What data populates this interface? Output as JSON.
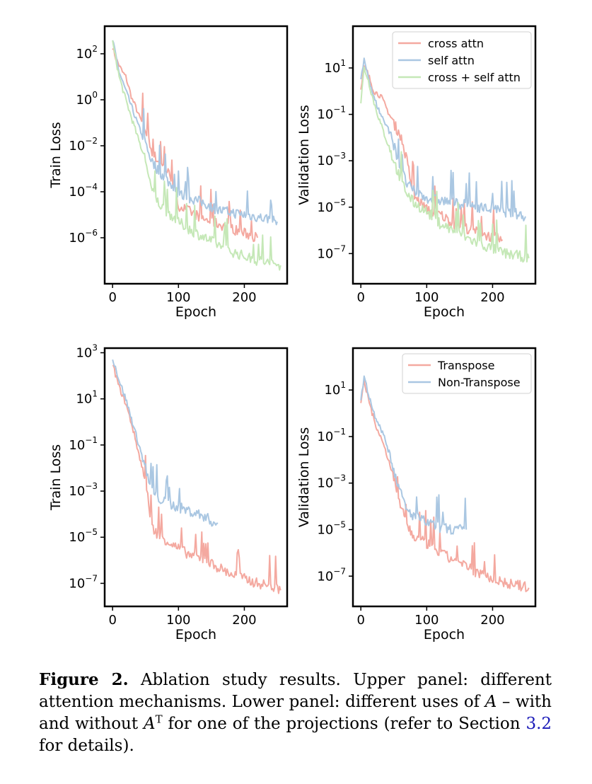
{
  "chart_data": [
    {
      "type": "line",
      "id": "top-left",
      "xlabel": "Epoch",
      "ylabel": "Train Loss",
      "yscale": "log",
      "xlim": [
        -12,
        265
      ],
      "ylim_log10": [
        -8,
        3.2
      ],
      "xticks": [
        0,
        100,
        200
      ],
      "yticks_log10": [
        2,
        0,
        -2,
        -4,
        -6
      ],
      "legend": null,
      "series": [
        {
          "color": "#f4a9a0",
          "x": [
            0,
            5,
            10,
            15,
            20,
            25,
            30,
            35,
            40,
            50,
            55,
            60,
            70,
            80,
            90,
            100,
            120,
            140,
            160,
            180,
            200,
            220
          ],
          "log10y": [
            2.3,
            1.8,
            1.5,
            1.2,
            1.0,
            0.5,
            0.0,
            -0.3,
            -0.7,
            -1.3,
            -1.8,
            -2.3,
            -2.7,
            -3.0,
            -3.4,
            -4.6,
            -4.9,
            -5.2,
            -5.4,
            -5.6,
            -5.8,
            -6.0
          ]
        },
        {
          "color": "#aac7e2",
          "x": [
            0,
            10,
            20,
            30,
            40,
            50,
            55,
            60,
            70,
            80,
            100,
            120,
            140,
            160,
            180,
            200,
            220,
            240,
            250
          ],
          "log10y": [
            2.6,
            1.2,
            0.4,
            -0.4,
            -1.2,
            -1.8,
            -2.3,
            -2.7,
            -3.1,
            -3.4,
            -4.1,
            -4.3,
            -4.5,
            -4.8,
            -4.9,
            -5.0,
            -5.1,
            -5.2,
            -5.3
          ]
        },
        {
          "color": "#c5e8b7",
          "x": [
            0,
            10,
            20,
            30,
            40,
            50,
            55,
            60,
            70,
            80,
            100,
            120,
            140,
            160,
            180,
            200,
            220,
            240,
            255
          ],
          "log10y": [
            2.5,
            1.0,
            0.0,
            -0.9,
            -1.8,
            -2.6,
            -3.3,
            -4.0,
            -4.5,
            -4.8,
            -5.3,
            -5.7,
            -6.0,
            -6.3,
            -6.6,
            -6.8,
            -7.0,
            -7.1,
            -7.2
          ]
        }
      ]
    },
    {
      "type": "line",
      "id": "top-right",
      "xlabel": "Epoch",
      "ylabel": "Validation Loss",
      "yscale": "log",
      "xlim": [
        -12,
        265
      ],
      "ylim_log10": [
        -8.3,
        2.8
      ],
      "xticks": [
        0,
        100,
        200
      ],
      "yticks_log10": [
        1,
        -1,
        -3,
        -5,
        -7
      ],
      "legend": [
        "cross attn",
        "self attn",
        "cross + self attn"
      ],
      "series": [
        {
          "color": "#f4a9a0",
          "x": [
            0,
            5,
            10,
            20,
            30,
            40,
            50,
            60,
            70,
            80,
            90,
            100,
            120,
            140,
            160,
            180,
            200,
            215
          ],
          "log10y": [
            0.0,
            1.0,
            0.8,
            0.0,
            -0.2,
            -0.8,
            -1.4,
            -1.9,
            -3.0,
            -4.5,
            -4.8,
            -5.1,
            -5.3,
            -5.7,
            -5.9,
            -6.1,
            -6.3,
            -6.4
          ]
        },
        {
          "color": "#aac7e2",
          "x": [
            0,
            5,
            10,
            20,
            30,
            40,
            50,
            60,
            70,
            80,
            100,
            120,
            140,
            160,
            180,
            200,
            220,
            240,
            250
          ],
          "log10y": [
            0.5,
            1.3,
            0.8,
            -0.3,
            -1.0,
            -1.5,
            -2.3,
            -3.3,
            -4.0,
            -4.3,
            -4.6,
            -4.7,
            -4.8,
            -4.9,
            -5.0,
            -5.1,
            -5.2,
            -5.3,
            -5.4
          ]
        },
        {
          "color": "#c5e8b7",
          "x": [
            0,
            5,
            10,
            20,
            30,
            40,
            50,
            60,
            70,
            80,
            100,
            120,
            140,
            160,
            180,
            200,
            220,
            240,
            255
          ],
          "log10y": [
            -0.5,
            1.0,
            0.6,
            -0.5,
            -1.4,
            -2.2,
            -3.0,
            -3.8,
            -4.4,
            -4.8,
            -5.2,
            -5.7,
            -6.0,
            -6.3,
            -6.6,
            -6.8,
            -7.0,
            -7.1,
            -7.2
          ]
        }
      ]
    },
    {
      "type": "line",
      "id": "bottom-left",
      "xlabel": "Epoch",
      "ylabel": "Train Loss",
      "yscale": "log",
      "xlim": [
        -12,
        265
      ],
      "ylim_log10": [
        -8,
        3.2
      ],
      "xticks": [
        0,
        100,
        200
      ],
      "yticks_log10": [
        3,
        1,
        -1,
        -3,
        -5,
        -7
      ],
      "legend": null,
      "series": [
        {
          "color": "#f4a9a0",
          "x": [
            0,
            10,
            20,
            30,
            40,
            50,
            55,
            60,
            70,
            80,
            100,
            120,
            140,
            160,
            180,
            200,
            220,
            240,
            255
          ],
          "log10y": [
            2.5,
            1.5,
            0.8,
            -0.2,
            -1.4,
            -2.6,
            -3.6,
            -4.6,
            -4.9,
            -5.1,
            -5.5,
            -5.8,
            -6.0,
            -6.3,
            -6.6,
            -6.8,
            -7.0,
            -7.1,
            -7.3
          ]
        },
        {
          "color": "#aac7e2",
          "x": [
            0,
            10,
            20,
            30,
            40,
            50,
            55,
            60,
            70,
            80,
            100,
            120,
            140,
            155,
            160
          ],
          "log10y": [
            2.8,
            1.8,
            1.0,
            0.0,
            -1.0,
            -2.0,
            -2.6,
            -3.0,
            -3.3,
            -3.5,
            -3.7,
            -3.9,
            -4.1,
            -4.4,
            -4.4
          ]
        }
      ]
    },
    {
      "type": "line",
      "id": "bottom-right",
      "xlabel": "Epoch",
      "ylabel": "Validation Loss",
      "yscale": "log",
      "xlim": [
        -12,
        265
      ],
      "ylim_log10": [
        -8.3,
        2.8
      ],
      "xticks": [
        0,
        100,
        200
      ],
      "yticks_log10": [
        1,
        -1,
        -3,
        -5,
        -7
      ],
      "legend": [
        "Transpose",
        "Non-Transpose"
      ],
      "series": [
        {
          "color": "#f4a9a0",
          "x": [
            0,
            5,
            10,
            20,
            30,
            40,
            50,
            60,
            70,
            80,
            100,
            120,
            140,
            160,
            180,
            200,
            220,
            240,
            255
          ],
          "log10y": [
            0.5,
            1.3,
            0.8,
            -0.3,
            -1.0,
            -1.8,
            -2.8,
            -4.0,
            -4.8,
            -5.3,
            -5.6,
            -6.0,
            -6.3,
            -6.6,
            -6.9,
            -7.1,
            -7.3,
            -7.4,
            -7.5
          ]
        },
        {
          "color": "#aac7e2",
          "x": [
            0,
            5,
            10,
            20,
            30,
            40,
            50,
            60,
            70,
            80,
            100,
            120,
            140,
            160
          ],
          "log10y": [
            0.5,
            1.6,
            1.0,
            0.0,
            -0.6,
            -1.4,
            -2.4,
            -3.4,
            -4.2,
            -4.4,
            -4.7,
            -4.9,
            -5.0,
            -5.0
          ]
        }
      ]
    }
  ],
  "caption": {
    "label": "Figure 2.",
    "part1": " Ablation study results. Upper panel: different attention mechanisms. Lower panel: different uses of ",
    "var_a": "A",
    "part2": " – with and without ",
    "var_at": "A",
    "sup_t": "T",
    "part3": " for one of the projections (refer to Section ",
    "ref": "3.2",
    "part4": " for details)."
  }
}
